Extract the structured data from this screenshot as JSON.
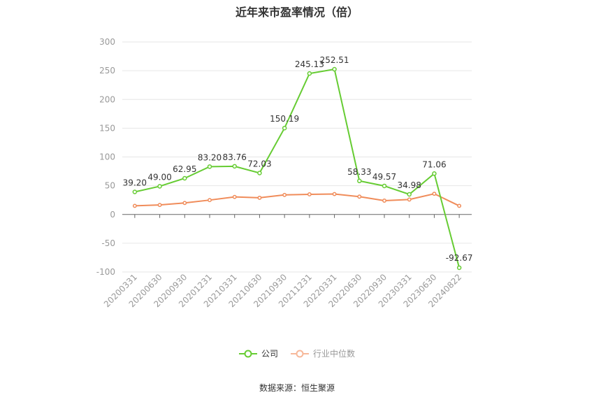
{
  "chart_data": {
    "type": "line",
    "title": "近年来市盈率情况（倍）",
    "categories": [
      "20200331",
      "20200630",
      "20200930",
      "20201231",
      "20210331",
      "20210630",
      "20210930",
      "20211231",
      "20220331",
      "20220630",
      "20220930",
      "20230331",
      "20230630",
      "20240822"
    ],
    "series": [
      {
        "name": "公司",
        "color": "#66cc33",
        "values": [
          39.2,
          49.0,
          62.95,
          83.2,
          83.76,
          72.03,
          150.19,
          245.13,
          252.51,
          58.33,
          49.57,
          34.98,
          71.06,
          -92.67
        ],
        "labels": [
          "39.20",
          "49.00",
          "62.95",
          "83.20",
          "83.76",
          "72.03",
          "150.19",
          "245.13",
          "252.51",
          "58.33",
          "49.57",
          "34.98",
          "71.06",
          "-92.67"
        ]
      },
      {
        "name": "行业中位数",
        "color": "#f08c5a",
        "values": [
          15,
          16.5,
          20,
          25,
          30.5,
          29,
          34,
          35,
          35.5,
          31,
          24,
          26,
          36,
          15
        ]
      }
    ],
    "yticks": [
      "300",
      "250",
      "200",
      "150",
      "100",
      "50",
      "0",
      "-50",
      "-100"
    ],
    "ylim": [
      -100,
      300
    ],
    "legend_position": "bottom",
    "grid": true
  },
  "legend": {
    "company": "公司",
    "industry": "行业中位数"
  },
  "source": "数据来源：恒生聚源"
}
